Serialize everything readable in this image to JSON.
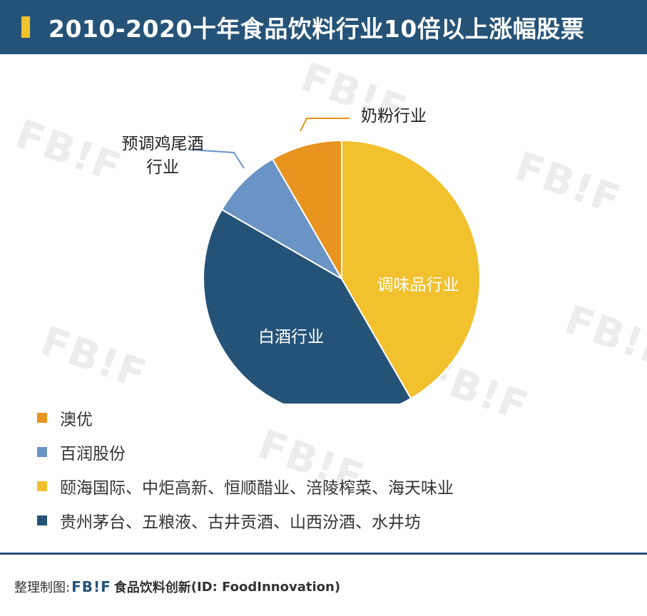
{
  "header": {
    "title": "2010-2020十年食品饮料行业10倍以上涨幅股票",
    "accent_color": "#f2c12e",
    "bg_color": "#255378"
  },
  "watermark_text": "FB!F",
  "chart_data": {
    "type": "pie",
    "title": "2010-2020十年食品饮料行业10倍以上涨幅股票",
    "slices": [
      {
        "label": "调味品行业",
        "value": 5,
        "color": "#f2c12e"
      },
      {
        "label": "白酒行业",
        "value": 5,
        "color": "#255378"
      },
      {
        "label": "预调鸡尾酒行业",
        "value": 1,
        "color": "#6a93c6"
      },
      {
        "label": "奶粉行业",
        "value": 1,
        "color": "#e8941e"
      }
    ],
    "label_lines": [
      "预调鸡尾酒",
      "行业"
    ]
  },
  "legend": [
    {
      "color": "#e8941e",
      "text": "澳优"
    },
    {
      "color": "#6a93c6",
      "text": "百润股份"
    },
    {
      "color": "#f2c12e",
      "text": "颐海国际、中炬高新、恒顺醋业、涪陵榨菜、海天味业"
    },
    {
      "color": "#255378",
      "text": "贵州茅台、五粮液、古井贡酒、山西汾酒、水井坊"
    }
  ],
  "footer": {
    "prefix": "整理制图:",
    "logo": "FB!F",
    "brand": "食品饮料创新",
    "id": "(ID: FoodInnovation)"
  }
}
